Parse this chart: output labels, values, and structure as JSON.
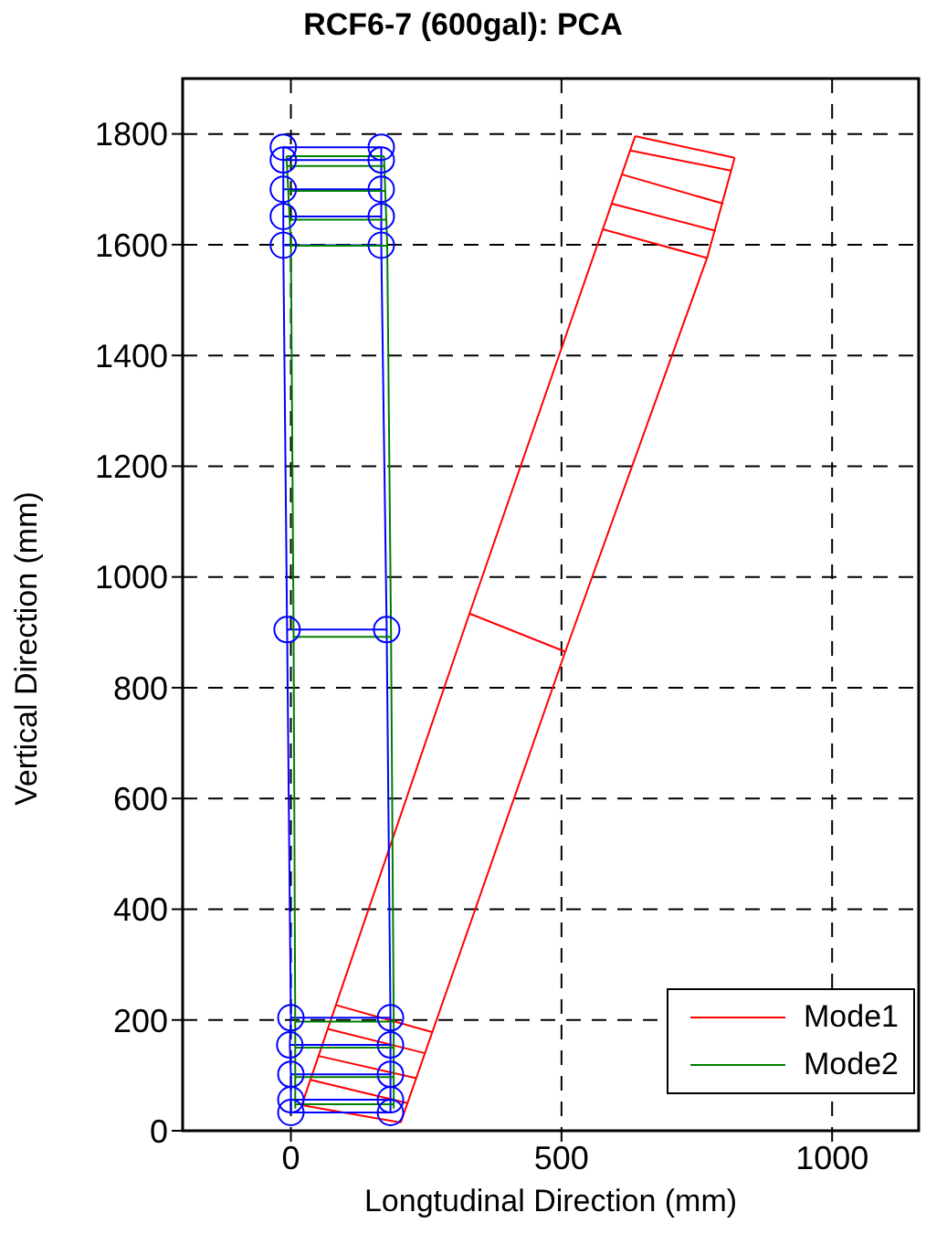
{
  "chart_data": {
    "type": "line",
    "title": "RCF6-7 (600gal): PCA",
    "xlabel": "Longtudinal Direction (mm)",
    "ylabel": "Vertical Direction (mm)",
    "xlim": [
      -200,
      1160
    ],
    "ylim": [
      0,
      1900
    ],
    "xticks": [
      0,
      500,
      1000
    ],
    "yticks": [
      0,
      200,
      400,
      600,
      800,
      1000,
      1200,
      1400,
      1600,
      1800
    ],
    "grid": true,
    "legend": "bottom right",
    "line_style": "solid",
    "marker": "none",
    "series": [
      {
        "name": "Mode1",
        "color": "#ff0000",
        "x": [
          20,
          330,
          636
        ],
        "values": [
          46,
          934,
          1796
        ]
      },
      {
        "color": "#ff0000",
        "x": [
          203,
          507,
          769,
          820
        ],
        "values": [
          15,
          865,
          1576,
          1757
        ]
      },
      {
        "color": "#ff0000",
        "x": [
          203,
          20
        ],
        "values": [
          15,
          46
        ]
      },
      {
        "color": "#ff0000",
        "x": [
          215,
          36
        ],
        "values": [
          50,
          92
        ]
      },
      {
        "color": "#ff0000",
        "x": [
          232,
          51
        ],
        "values": [
          95,
          135
        ]
      },
      {
        "color": "#ff0000",
        "x": [
          248,
          68
        ],
        "values": [
          140,
          184
        ]
      },
      {
        "color": "#ff0000",
        "x": [
          261,
          83
        ],
        "values": [
          178,
          227
        ]
      },
      {
        "color": "#ff0000",
        "x": [
          507,
          330
        ],
        "values": [
          865,
          934
        ]
      },
      {
        "color": "#ff0000",
        "x": [
          769,
          576
        ],
        "values": [
          1576,
          1628
        ]
      },
      {
        "color": "#ff0000",
        "x": [
          785,
          593
        ],
        "values": [
          1625,
          1674
        ]
      },
      {
        "color": "#ff0000",
        "x": [
          799,
          611
        ],
        "values": [
          1674,
          1727
        ]
      },
      {
        "color": "#ff0000",
        "x": [
          813,
          627
        ],
        "values": [
          1734,
          1770
        ]
      },
      {
        "color": "#ff0000",
        "x": [
          820,
          636
        ],
        "values": [
          1757,
          1796
        ]
      },
      {
        "color": "#0000ff",
        "marker": "circle",
        "x": [
          0,
          0,
          0,
          -2,
          0,
          -7,
          -14,
          -14,
          -14,
          -14,
          -14
        ],
        "values": [
          33,
          56,
          102,
          155,
          204,
          905,
          1599,
          1651,
          1700,
          1753,
          1776
        ]
      },
      {
        "color": "#0000ff",
        "marker": "circle",
        "x": [
          184,
          184,
          184,
          184,
          184,
          177,
          167,
          167,
          167,
          167,
          167
        ],
        "values": [
          33,
          56,
          102,
          155,
          204,
          905,
          1599,
          1651,
          1700,
          1753,
          1776
        ]
      },
      {
        "color": "#0000ff",
        "x": [
          0,
          184
        ],
        "values": [
          33,
          33
        ]
      },
      {
        "color": "#0000ff",
        "x": [
          0,
          184
        ],
        "values": [
          56,
          56
        ]
      },
      {
        "color": "#0000ff",
        "x": [
          0,
          184
        ],
        "values": [
          102,
          102
        ]
      },
      {
        "color": "#0000ff",
        "x": [
          -2,
          184
        ],
        "values": [
          155,
          155
        ]
      },
      {
        "color": "#0000ff",
        "x": [
          0,
          184
        ],
        "values": [
          204,
          204
        ]
      },
      {
        "color": "#0000ff",
        "x": [
          -7,
          177
        ],
        "values": [
          905,
          905
        ]
      },
      {
        "color": "#0000ff",
        "x": [
          -14,
          167
        ],
        "values": [
          1599,
          1599
        ]
      },
      {
        "color": "#0000ff",
        "x": [
          -14,
          167
        ],
        "values": [
          1651,
          1651
        ]
      },
      {
        "color": "#0000ff",
        "x": [
          -14,
          167
        ],
        "values": [
          1700,
          1700
        ]
      },
      {
        "color": "#0000ff",
        "x": [
          -14,
          167
        ],
        "values": [
          1753,
          1753
        ]
      },
      {
        "color": "#0000ff",
        "x": [
          -14,
          167
        ],
        "values": [
          1776,
          1776
        ]
      },
      {
        "name": "Mode2",
        "color": "#007f00",
        "x": [
          8,
          8,
          5,
          0,
          -8
        ],
        "values": [
          40,
          200,
          900,
          1600,
          1760
        ]
      },
      {
        "color": "#007f00",
        "x": [
          190,
          190,
          185,
          178,
          172
        ],
        "values": [
          40,
          200,
          900,
          1600,
          1760
        ]
      },
      {
        "color": "#007f00",
        "x": [
          8,
          190
        ],
        "values": [
          48,
          48
        ]
      },
      {
        "color": "#007f00",
        "x": [
          8,
          190
        ],
        "values": [
          97,
          97
        ]
      },
      {
        "color": "#007f00",
        "x": [
          8,
          190
        ],
        "values": [
          150,
          150
        ]
      },
      {
        "color": "#007f00",
        "x": [
          8,
          190
        ],
        "values": [
          197,
          197
        ]
      },
      {
        "color": "#007f00",
        "x": [
          5,
          185
        ],
        "values": [
          892,
          892
        ]
      },
      {
        "color": "#007f00",
        "x": [
          0,
          178
        ],
        "values": [
          1598,
          1598
        ]
      },
      {
        "color": "#007f00",
        "x": [
          -2,
          177
        ],
        "values": [
          1645,
          1645
        ]
      },
      {
        "color": "#007f00",
        "x": [
          -4,
          175
        ],
        "values": [
          1697,
          1697
        ]
      },
      {
        "color": "#007f00",
        "x": [
          -6,
          173
        ],
        "values": [
          1742,
          1742
        ]
      },
      {
        "color": "#007f00",
        "x": [
          -8,
          172
        ],
        "values": [
          1760,
          1760
        ]
      }
    ]
  }
}
